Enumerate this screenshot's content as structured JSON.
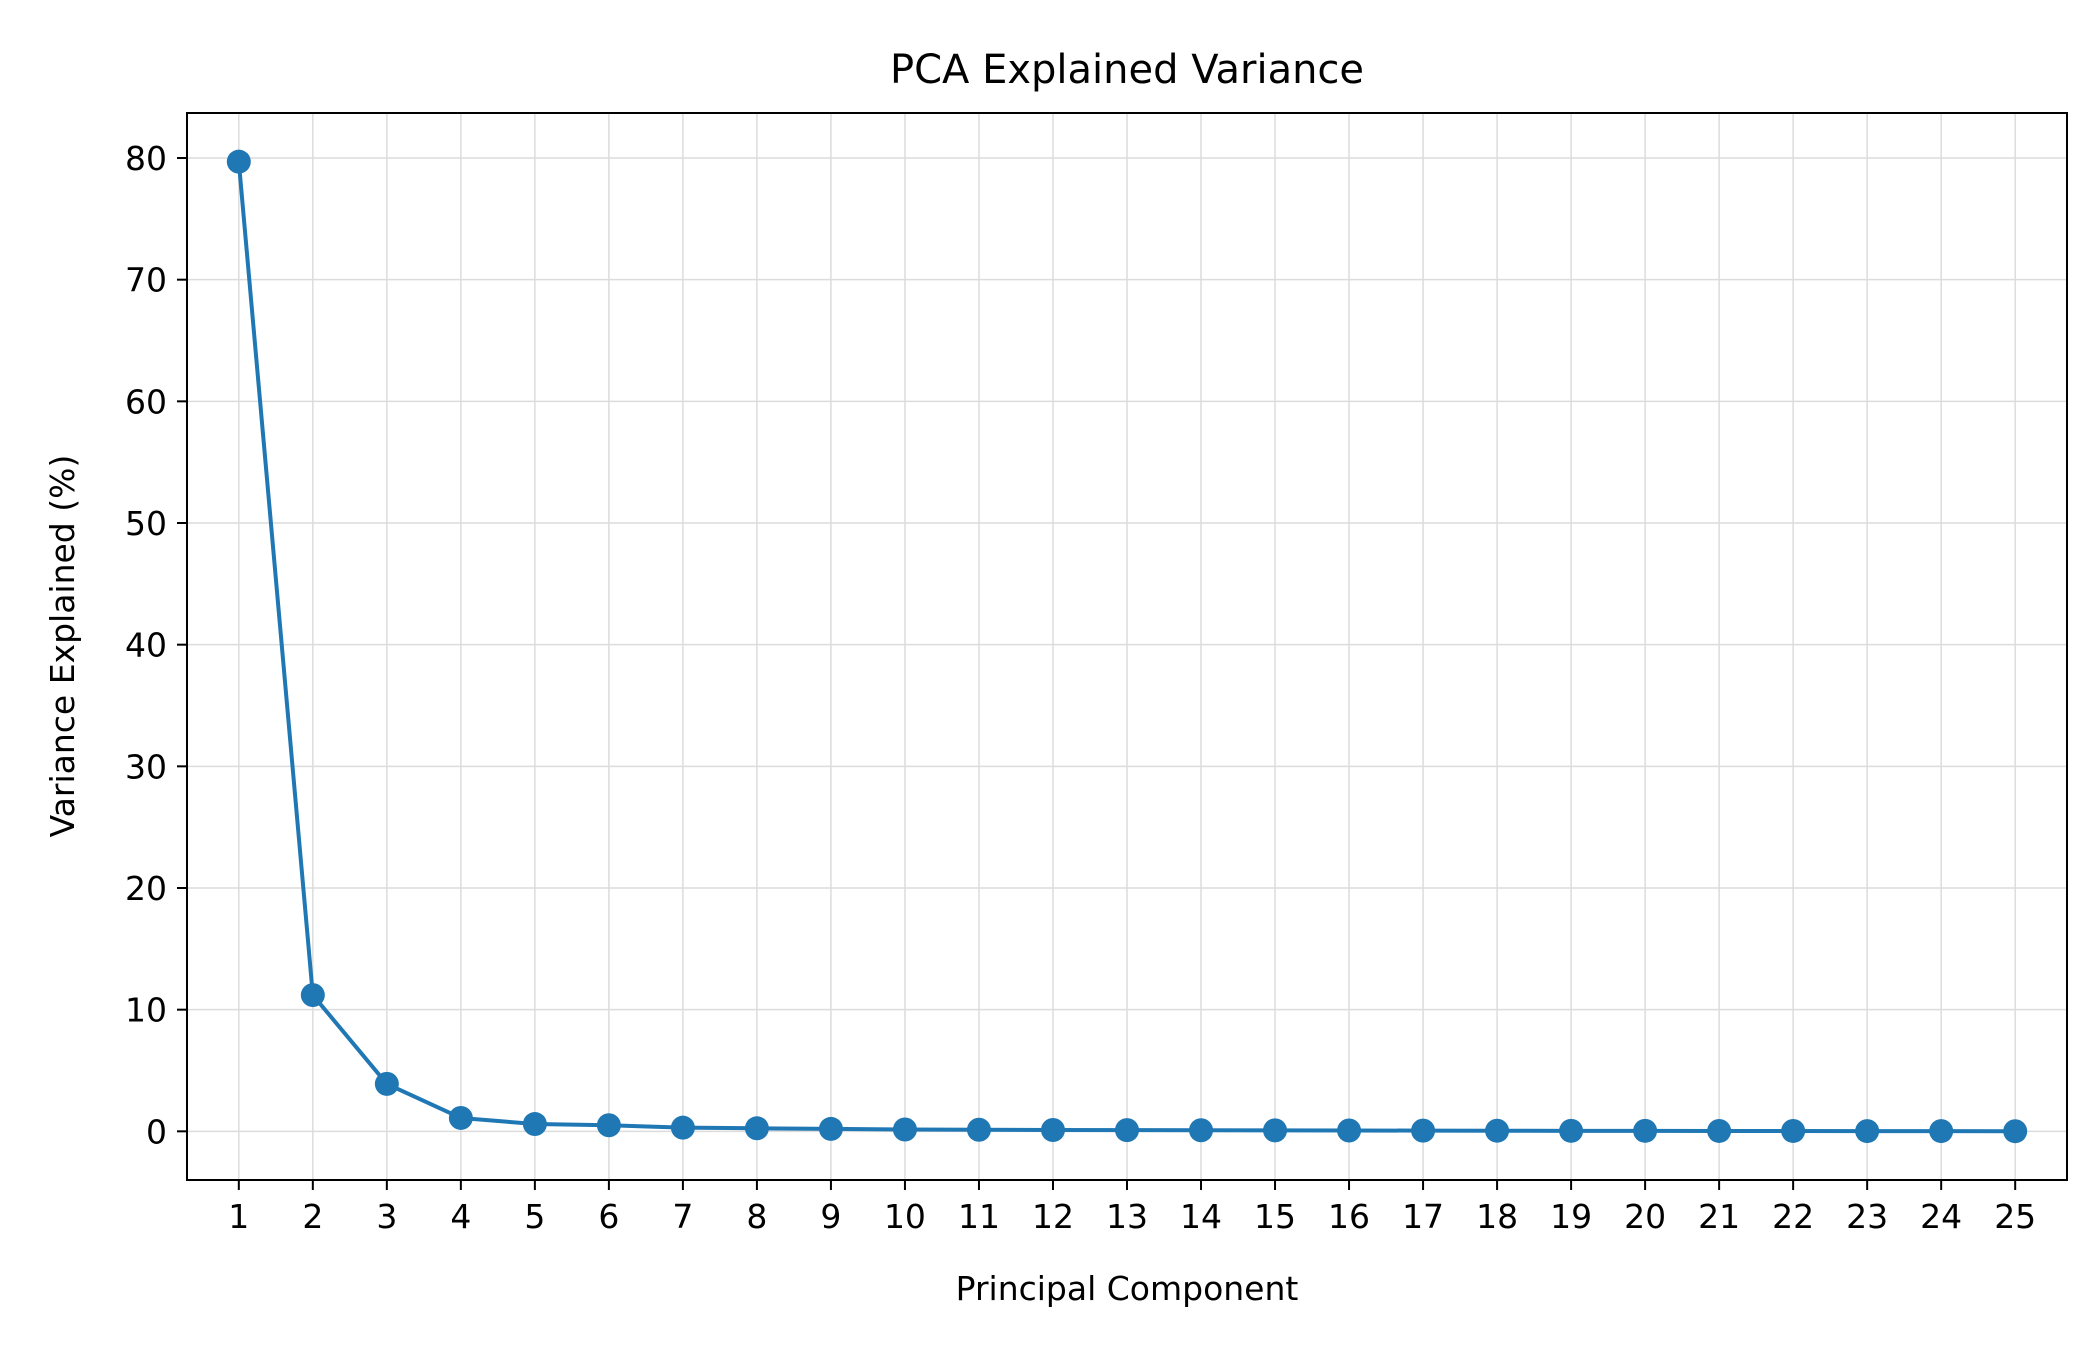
{
  "chart_data": {
    "type": "line",
    "title": "PCA Explained Variance",
    "xlabel": "Principal Component",
    "ylabel": "Variance Explained (%)",
    "x": [
      1,
      2,
      3,
      4,
      5,
      6,
      7,
      8,
      9,
      10,
      11,
      12,
      13,
      14,
      15,
      16,
      17,
      18,
      19,
      20,
      21,
      22,
      23,
      24,
      25
    ],
    "x_tick_labels": [
      "1",
      "2",
      "3",
      "4",
      "5",
      "6",
      "7",
      "8",
      "9",
      "10",
      "11",
      "12",
      "13",
      "14",
      "15",
      "16",
      "17",
      "18",
      "19",
      "20",
      "21",
      "22",
      "23",
      "24",
      "25"
    ],
    "y_ticks": [
      0,
      10,
      20,
      30,
      40,
      50,
      60,
      70,
      80
    ],
    "y_tick_labels": [
      "0",
      "10",
      "20",
      "30",
      "40",
      "50",
      "60",
      "70",
      "80"
    ],
    "xlim": [
      0.3,
      25.7
    ],
    "ylim": [
      -4,
      83.7
    ],
    "grid": true,
    "series": [
      {
        "values": [
          79.7,
          11.2,
          3.9,
          1.1,
          0.6,
          0.5,
          0.3,
          0.25,
          0.2,
          0.15,
          0.13,
          0.11,
          0.1,
          0.09,
          0.08,
          0.07,
          0.06,
          0.05,
          0.04,
          0.04,
          0.03,
          0.03,
          0.02,
          0.02,
          0.01
        ],
        "color": "#1f77b4",
        "marker": "circle"
      }
    ],
    "colors": {
      "line": "#1f77b4",
      "grid": "#dcdcdc",
      "axes": "#000000"
    }
  }
}
